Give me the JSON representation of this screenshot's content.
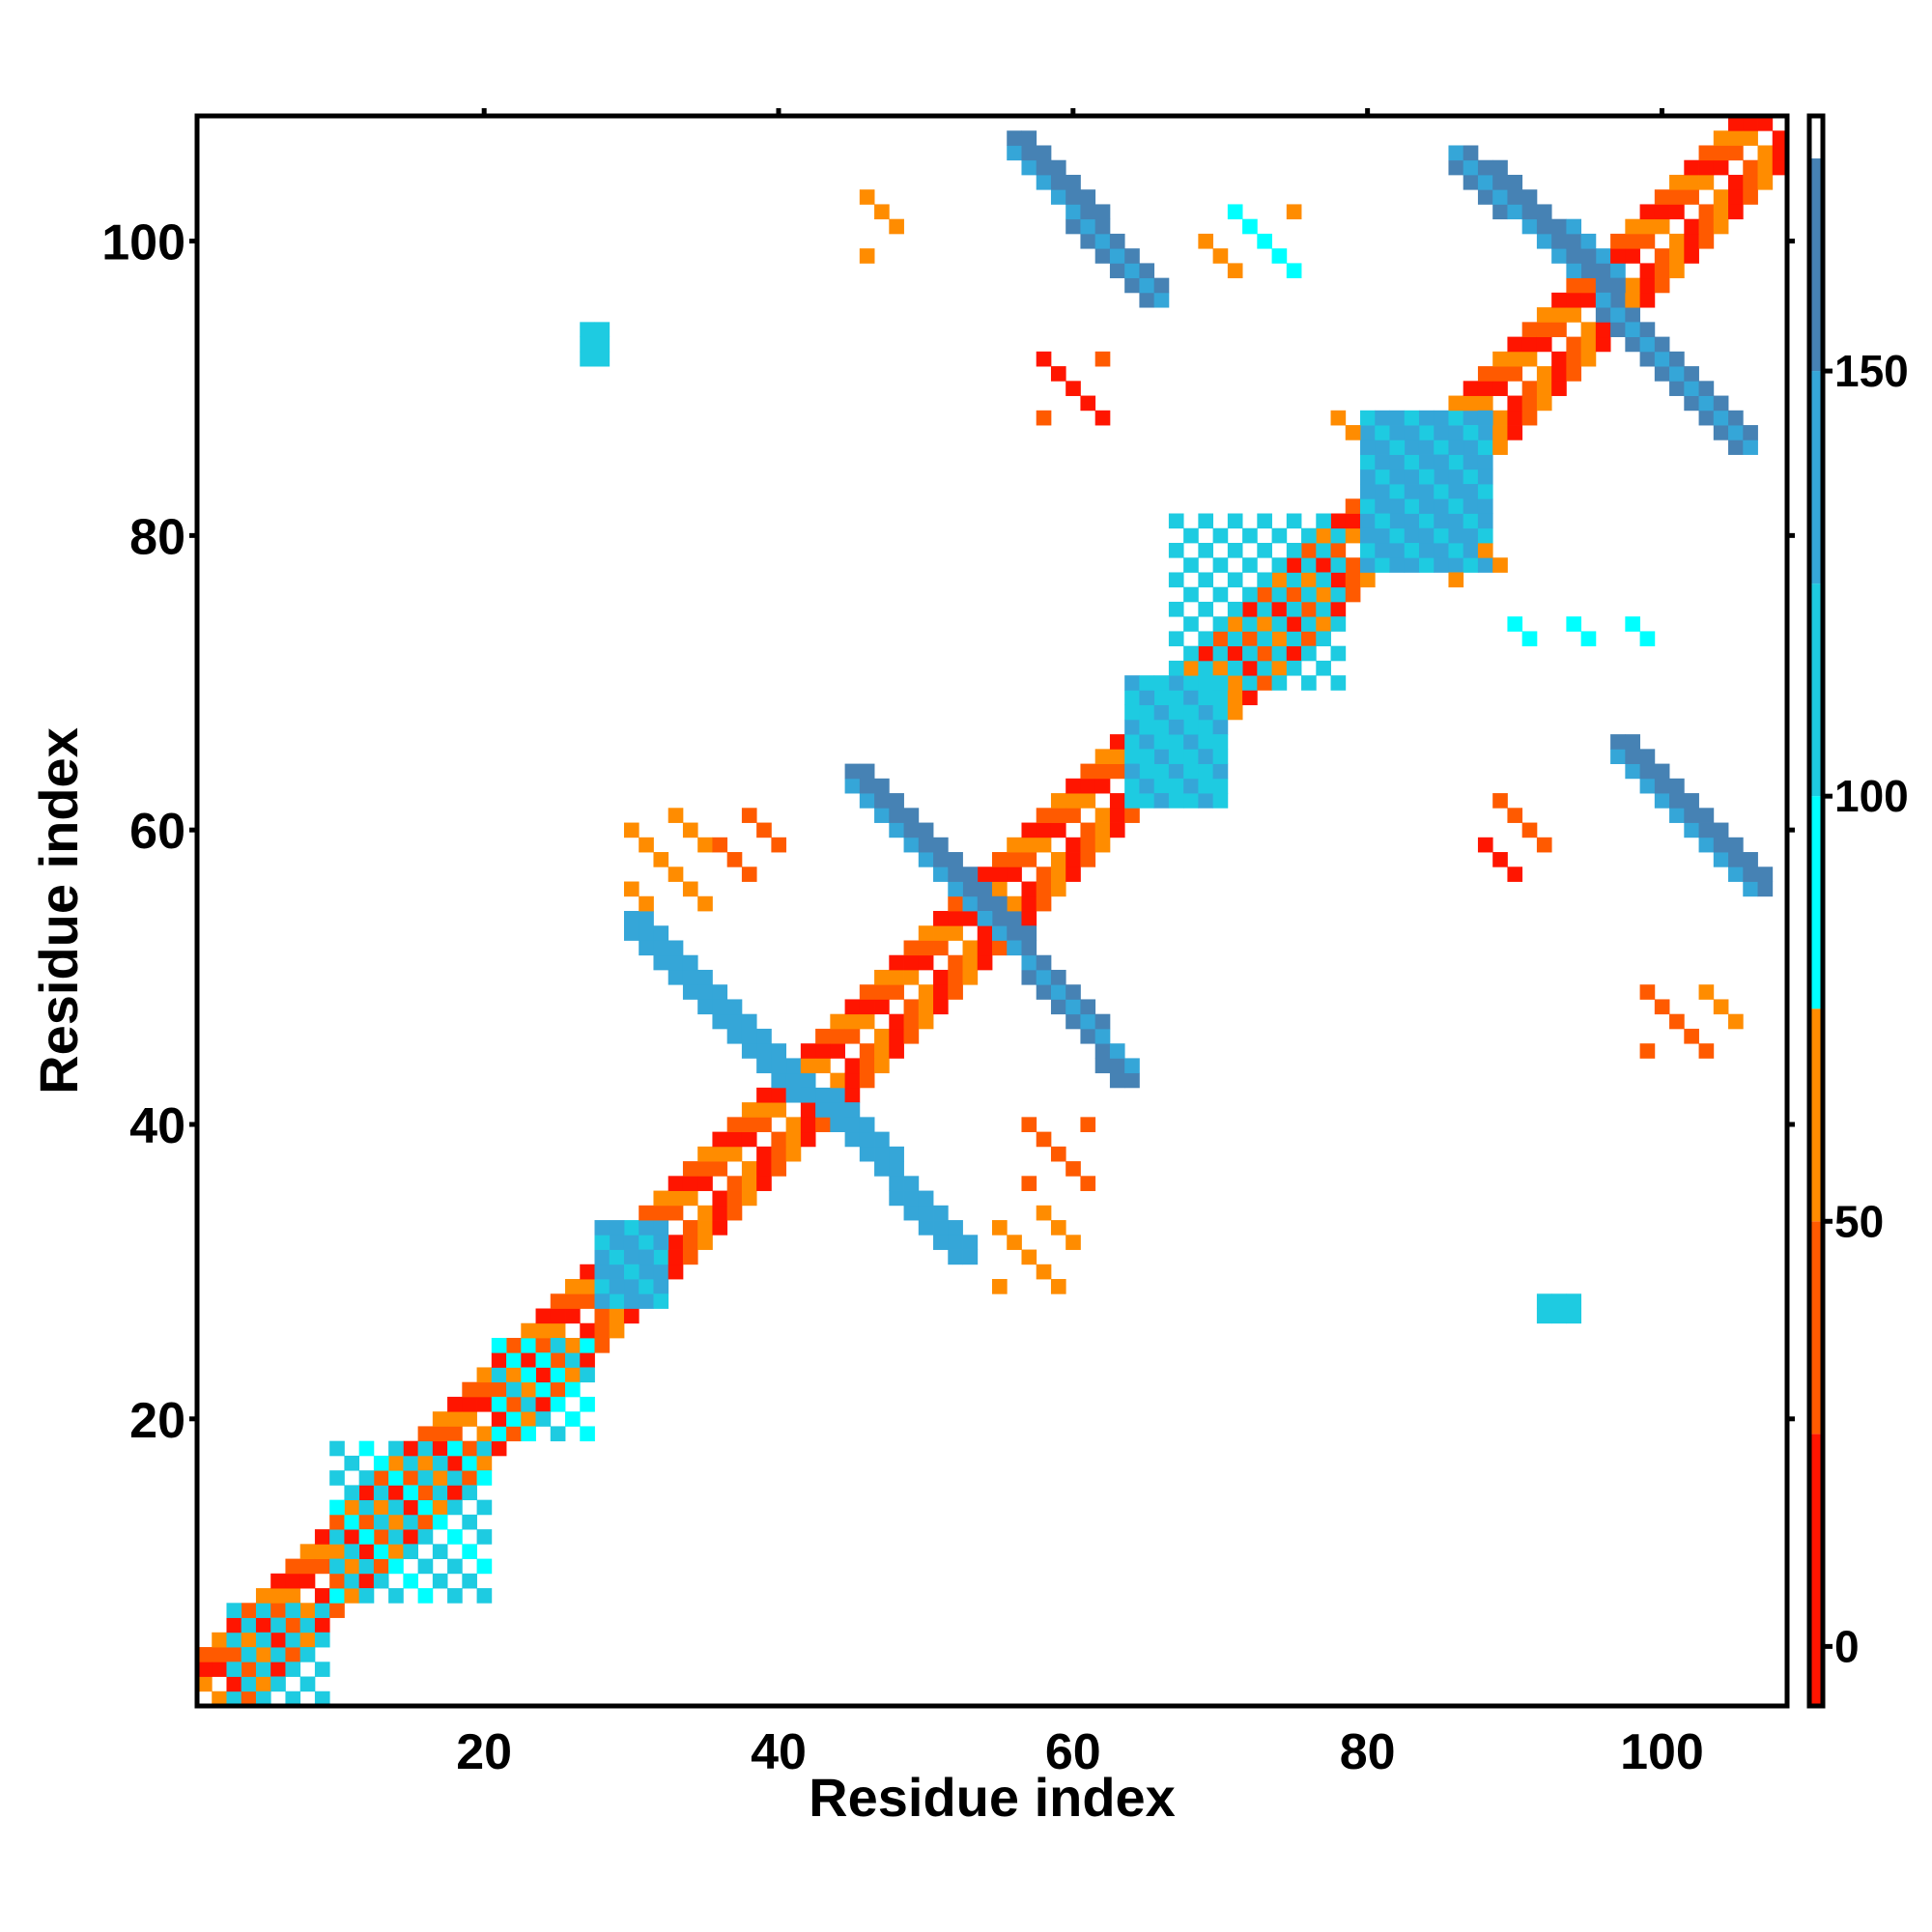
{
  "chart_data": {
    "type": "heatmap",
    "xlabel": "Residue index",
    "ylabel": "Residue index",
    "xlim": [
      0.5,
      108.5
    ],
    "ylim": [
      0.5,
      108.5
    ],
    "x_ticks": [
      20,
      40,
      60,
      80,
      100
    ],
    "y_ticks": [
      20,
      40,
      60,
      80,
      100
    ],
    "colorbar": {
      "range": [
        -7,
        180
      ],
      "ticks": [
        0,
        50,
        100,
        150
      ],
      "bins": [
        {
          "from": -7,
          "to": 25,
          "color": "#ff1500"
        },
        {
          "from": 25,
          "to": 50,
          "color": "#ff5a00"
        },
        {
          "from": 50,
          "to": 75,
          "color": "#ff8c00"
        },
        {
          "from": 75,
          "to": 100,
          "color": "#00ffff"
        },
        {
          "from": 100,
          "to": 125,
          "color": "#1ecbe1"
        },
        {
          "from": 125,
          "to": 150,
          "color": "#35a6d8"
        },
        {
          "from": 150,
          "to": 175,
          "color": "#4682b4"
        },
        {
          "from": 175,
          "to": 180,
          "color": "#ffffff"
        }
      ]
    },
    "diagonal_band": {
      "from": 1,
      "to": 108,
      "width": 3
    },
    "regions": [
      {
        "x": [
          3,
          9
        ],
        "y": [
          1,
          7
        ],
        "value": 110,
        "pattern": "checker"
      },
      {
        "x": [
          10,
          20
        ],
        "y": [
          8,
          18
        ],
        "value": 105,
        "pattern": "checker"
      },
      {
        "x": [
          21,
          27
        ],
        "y": [
          19,
          25
        ],
        "value": 95,
        "pattern": "checker"
      },
      {
        "x": [
          28,
          32
        ],
        "y": [
          28,
          33
        ],
        "value": 130,
        "pattern": "solid"
      },
      {
        "x": [
          30,
          42
        ],
        "y": [
          42,
          54
        ],
        "value": 140,
        "pattern": "antidiag"
      },
      {
        "x": [
          43,
          53
        ],
        "y": [
          31,
          42
        ],
        "value": 140,
        "pattern": "antidiag"
      },
      {
        "x": [
          45,
          55
        ],
        "y": [
          54,
          64
        ],
        "value": 150,
        "pattern": "antidiag"
      },
      {
        "x": [
          55,
          64
        ],
        "y": [
          43,
          54
        ],
        "value": 150,
        "pattern": "antidiag"
      },
      {
        "x": [
          64,
          70
        ],
        "y": [
          62,
          70
        ],
        "value": 120,
        "pattern": "solid"
      },
      {
        "x": [
          67,
          78
        ],
        "y": [
          70,
          81
        ],
        "value": 110,
        "pattern": "checker"
      },
      {
        "x": [
          80,
          88
        ],
        "y": [
          78,
          88
        ],
        "value": 130,
        "pattern": "solid"
      },
      {
        "x": [
          56,
          66
        ],
        "y": [
          96,
          107
        ],
        "value": 150,
        "pattern": "antidiag"
      },
      {
        "x": [
          86,
          97
        ],
        "y": [
          97,
          106
        ],
        "value": 150,
        "pattern": "antidiag"
      },
      {
        "x": [
          96,
          106
        ],
        "y": [
          86,
          96
        ],
        "value": 150,
        "pattern": "antidiag"
      },
      {
        "x": [
          97,
          107
        ],
        "y": [
          56,
          66
        ],
        "value": 150,
        "pattern": "antidiag"
      },
      {
        "x": [
          92,
          94
        ],
        "y": [
          27,
          28
        ],
        "value": 110,
        "pattern": "solid"
      },
      {
        "x": [
          27,
          28
        ],
        "y": [
          92,
          94
        ],
        "value": 110,
        "pattern": "solid"
      },
      {
        "x": [
          46,
          48
        ],
        "y": [
          99,
          104
        ],
        "value": 60,
        "pattern": "sparse"
      },
      {
        "x": [
          30,
          35
        ],
        "y": [
          55,
          61
        ],
        "value": 60,
        "pattern": "sparse"
      },
      {
        "x": [
          36,
          40
        ],
        "y": [
          57,
          61
        ],
        "value": 40,
        "pattern": "sparse"
      },
      {
        "x": [
          55,
          60
        ],
        "y": [
          29,
          34
        ],
        "value": 60,
        "pattern": "sparse"
      },
      {
        "x": [
          57,
          61
        ],
        "y": [
          36,
          40
        ],
        "value": 40,
        "pattern": "sparse"
      },
      {
        "x": [
          58,
          62
        ],
        "y": [
          88,
          92
        ],
        "value": 30,
        "pattern": "sparse"
      },
      {
        "x": [
          88,
          92
        ],
        "y": [
          57,
          62
        ],
        "value": 30,
        "pattern": "sparse"
      },
      {
        "x": [
          99,
          105
        ],
        "y": [
          45,
          49
        ],
        "value": 45,
        "pattern": "sparse"
      },
      {
        "x": [
          69,
          75
        ],
        "y": [
          98,
          102
        ],
        "value": 70,
        "pattern": "sparse"
      },
      {
        "x": [
          77,
          79
        ],
        "y": [
          86,
          88
        ],
        "value": 60,
        "pattern": "sparse"
      },
      {
        "x": [
          86,
          89
        ],
        "y": [
          77,
          79
        ],
        "value": 60,
        "pattern": "sparse"
      },
      {
        "x": [
          89,
          100
        ],
        "y": [
          73,
          74
        ],
        "value": 90,
        "pattern": "sparse"
      }
    ]
  }
}
